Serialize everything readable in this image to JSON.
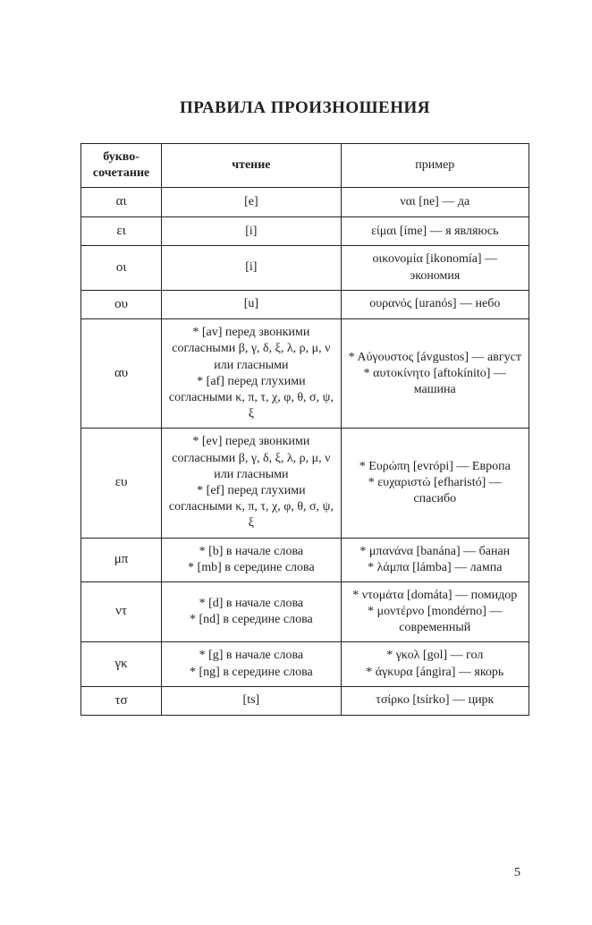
{
  "title": "ПРАВИЛА ПРОИЗНОШЕНИЯ",
  "page_number": "5",
  "headers": {
    "col1_line1": "букво-",
    "col1_line2": "сочетание",
    "col2": "чтение",
    "col3": "пример"
  },
  "rows": {
    "r1": {
      "letters": "αι",
      "reading": "[e]",
      "example": "ναι [ne] — да"
    },
    "r2": {
      "letters": "ει",
      "reading": "[i]",
      "example": "είμαι [íme] — я являюсь"
    },
    "r3": {
      "letters": "οι",
      "reading": "[i]",
      "example": "οικονομία [ikonomía] — экономия"
    },
    "r4": {
      "letters": "ου",
      "reading": "[u]",
      "example": "ουρανός [uranós] — небо"
    },
    "r5": {
      "letters": "αυ",
      "reading": "* [av] перед звонкими согласными β, γ, δ, ξ, λ, ρ, μ, ν или гласными\n* [af] перед глухими согласными κ, π, τ, χ, φ, θ, σ, ψ, ξ",
      "example": "* Αύγουστος [ávgustos] — август\n* αυτοκίνητο [aftokínito] — машина"
    },
    "r6": {
      "letters": "ευ",
      "reading": "* [ev] перед звонкими согласными β, γ, δ, ξ, λ, ρ, μ, ν или гласными\n* [ef] перед глухими согласными κ, π, τ, χ, φ, θ, σ, ψ, ξ",
      "example": "* Ευρώπη [evrópi] — Европа\n* ευχαριστώ [efharistó] — спасибо"
    },
    "r7": {
      "letters": "μπ",
      "reading": "* [b] в начале слова\n* [mb] в середине слова",
      "example": "* μπανάνα [banána] — банан\n* λάμπα [lámba] — лампа"
    },
    "r8": {
      "letters": "ντ",
      "reading": "* [d] в начале слова\n* [nd] в середине слова",
      "example": "* ντομάτα [domáta] — помидор\n* μοντέρνο [mondérno] — современный"
    },
    "r9": {
      "letters": "γκ",
      "reading": "* [g] в начале слова\n* [ng] в середине слова",
      "example": "* γκολ [gol] — гол\n* άγκυρα [ángira] — якорь"
    },
    "r10": {
      "letters": "τσ",
      "reading": "[ts]",
      "example": "τσίρκο [tsírko] — цирк"
    }
  }
}
